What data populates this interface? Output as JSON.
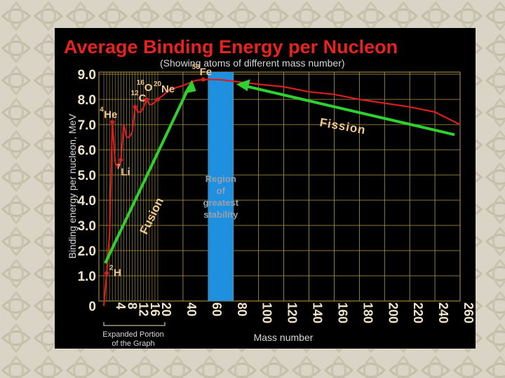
{
  "colors": {
    "background": "#d9d4c6",
    "panel": "#000000",
    "title": "#e8231f",
    "text": "#d8d8d8",
    "axis_ticks": "#f0e4c8",
    "curve": "#d81e1e",
    "arrows": "#2ed12e",
    "stability_region": "#1f8fe0",
    "stability_text": "#98a0a8",
    "isotope_labels": "#f0c890",
    "grid": "#b89a4a"
  },
  "chart_data": {
    "type": "line",
    "title": "Average Binding Energy per Nucleon",
    "subtitle": "(Showing atoms of different mass number)",
    "ylabel": "Binding energy per nucleon, MeV",
    "xlabel": "Mass number",
    "ylim": [
      0,
      9.0
    ],
    "y_ticks": [
      "1.0",
      "2.0",
      "3.0",
      "4.0",
      "5.0",
      "6.0",
      "7.0",
      "8.0",
      "9.0"
    ],
    "y_zero_label": "0",
    "x_ticks_expanded": [
      "4",
      "8",
      "12",
      "16",
      "20"
    ],
    "x_ticks_main": [
      "40",
      "60",
      "80",
      "100",
      "120",
      "140",
      "160",
      "180",
      "200",
      "220",
      "240",
      "260"
    ],
    "grid": true,
    "series": [
      {
        "x": [
          1,
          2,
          3,
          4,
          5,
          6,
          7,
          8,
          9,
          10,
          11,
          12,
          13,
          14,
          15,
          16,
          17,
          18,
          19,
          20,
          25,
          30,
          40,
          50,
          56,
          62,
          70,
          80,
          100,
          120,
          140,
          160,
          180,
          200,
          220,
          240,
          260
        ],
        "values": [
          0,
          1.1,
          2.6,
          7.1,
          5.5,
          5.3,
          5.6,
          7.0,
          6.5,
          6.5,
          6.7,
          7.7,
          7.5,
          7.5,
          7.7,
          8.0,
          7.8,
          7.8,
          7.9,
          8.0,
          8.2,
          8.4,
          8.55,
          8.75,
          8.79,
          8.79,
          8.78,
          8.72,
          8.6,
          8.5,
          8.3,
          8.2,
          8.0,
          7.85,
          7.7,
          7.5,
          7.0
        ]
      }
    ],
    "isotopes": [
      {
        "mass": "2",
        "symbol": "H",
        "a": 2,
        "be": 1.1
      },
      {
        "mass": "4",
        "symbol": "He",
        "a": 4,
        "be": 7.1
      },
      {
        "mass": "7",
        "symbol": "Li",
        "a": 7,
        "be": 5.6
      },
      {
        "mass": "12",
        "symbol": "C",
        "a": 12,
        "be": 7.7
      },
      {
        "mass": "16",
        "symbol": "O",
        "a": 16,
        "be": 8.0
      },
      {
        "mass": "20",
        "symbol": "Ne",
        "a": 20,
        "be": 8.0
      },
      {
        "mass": "56",
        "symbol": "Fe",
        "a": 56,
        "be": 8.79
      }
    ],
    "annotations": {
      "fusion": "Fusion",
      "fission": "Fission",
      "region_lines": [
        "Region",
        "of",
        "greatest",
        "stability"
      ],
      "region_x": [
        60,
        80
      ],
      "expanded_lines": [
        "Expanded Portion",
        "of the Graph"
      ]
    }
  }
}
